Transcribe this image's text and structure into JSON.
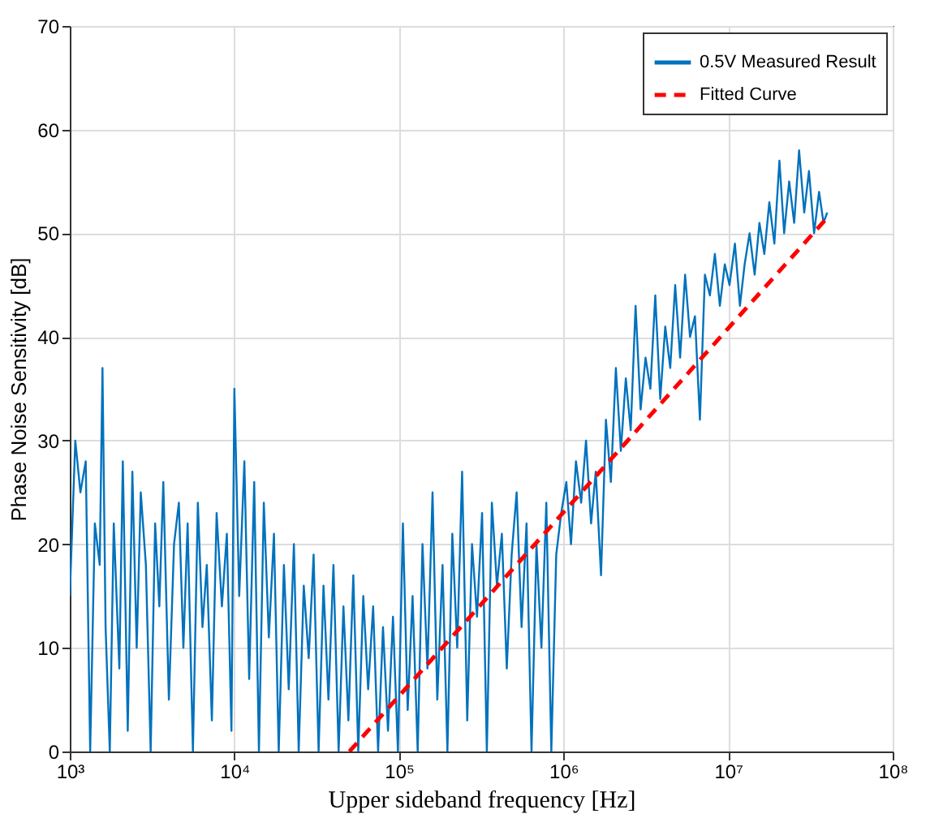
{
  "chart_data": {
    "type": "line",
    "xlabel": "Upper sideband frequency [Hz]",
    "ylabel": "Phase Noise Sensitivity [dB]",
    "log": "x",
    "grid": true,
    "legend": "top right",
    "marker": "none",
    "xlim": [
      1000,
      100000000
    ],
    "xticks": [
      {
        "value": 1000,
        "label": "10³"
      },
      {
        "value": 10000,
        "label": "10⁴"
      },
      {
        "value": 100000,
        "label": "10⁵"
      },
      {
        "value": 1000000,
        "label": "10⁶"
      },
      {
        "value": 10000000,
        "label": "10⁷"
      },
      {
        "value": 100000000,
        "label": "10⁸"
      }
    ],
    "ylim": [
      0,
      70
    ],
    "yticks": [
      0,
      10,
      20,
      30,
      40,
      50,
      60,
      70
    ],
    "series": [
      {
        "name": "0.5V Measured Result",
        "color": "#0072bd",
        "line_style": "solid",
        "x": [
          1000,
          1080,
          1160,
          1250,
          1330,
          1420,
          1520,
          1580,
          1650,
          1750,
          1850,
          2000,
          2100,
          2250,
          2400,
          2550,
          2700,
          2900,
          3100,
          3300,
          3500,
          3700,
          4000,
          4300,
          4600,
          4900,
          5200,
          5600,
          6000,
          6400,
          6800,
          7300,
          7800,
          8400,
          9000,
          9600,
          10000,
          10700,
          11500,
          12300,
          13200,
          14100,
          15100,
          16200,
          17400,
          18600,
          20000,
          21400,
          23000,
          24600,
          26400,
          28300,
          30300,
          32500,
          34800,
          37300,
          40000,
          43000,
          46000,
          49300,
          52800,
          56600,
          60700,
          65000,
          69700,
          74700,
          80000,
          85800,
          92000,
          98600,
          105700,
          113000,
          121000,
          130000,
          139000,
          149000,
          160000,
          171000,
          184000,
          197000,
          211000,
          226000,
          242000,
          260000,
          278000,
          298000,
          320000,
          342000,
          367000,
          394000,
          422000,
          452000,
          484000,
          519000,
          556000,
          596000,
          639000,
          685000,
          734000,
          786000,
          843000,
          903000,
          968000,
          1040000,
          1110000,
          1190000,
          1280000,
          1370000,
          1470000,
          1570000,
          1690000,
          1810000,
          1940000,
          2080000,
          2230000,
          2390000,
          2560000,
          2740000,
          2940000,
          3150000,
          3370000,
          3610000,
          3870000,
          4150000,
          4450000,
          4770000,
          5110000,
          5480000,
          5870000,
          6290000,
          6740000,
          7230000,
          7750000,
          8310000,
          8910000,
          9550000,
          10200000,
          11000000,
          11800000,
          12600000,
          13500000,
          14500000,
          15500000,
          16600000,
          17800000,
          19100000,
          20500000,
          21900000,
          23500000,
          25200000,
          27000000,
          29000000,
          31000000,
          33300000,
          35700000,
          38000000,
          40000000
        ],
        "values": [
          15,
          30,
          25,
          28,
          0,
          22,
          18,
          37,
          12,
          0,
          22,
          8,
          28,
          2,
          27,
          10,
          25,
          18,
          0,
          22,
          14,
          26,
          5,
          20,
          24,
          10,
          22,
          0,
          24,
          12,
          18,
          3,
          23,
          14,
          21,
          2,
          35,
          15,
          28,
          7,
          26,
          0,
          24,
          11,
          21,
          0,
          18,
          6,
          20,
          0,
          16,
          9,
          19,
          0,
          16,
          5,
          18,
          0,
          14,
          3,
          17,
          0,
          15,
          6,
          14,
          0,
          12,
          2,
          13,
          0,
          22,
          4,
          15,
          0,
          20,
          8,
          25,
          5,
          18,
          0,
          21,
          10,
          27,
          3,
          20,
          13,
          23,
          0,
          24,
          16,
          21,
          8,
          19,
          25,
          12,
          22,
          0,
          20,
          10,
          24,
          0,
          19,
          23,
          26,
          20,
          28,
          24,
          30,
          22,
          27,
          17,
          32,
          26,
          37,
          29,
          36,
          31,
          43,
          33,
          38,
          35,
          44,
          34,
          41,
          37,
          45,
          38,
          46,
          40,
          42,
          32,
          46,
          44,
          48,
          43,
          47,
          45,
          49,
          43,
          47,
          50,
          46,
          51,
          48,
          53,
          49,
          57,
          50,
          55,
          51,
          58,
          52,
          56,
          50,
          54,
          51,
          52
        ]
      },
      {
        "name": "Fitted Curve",
        "color": "#ff0000",
        "line_style": "dashed",
        "x": [
          50000,
          40000000
        ],
        "values": [
          0,
          51.5
        ]
      }
    ]
  }
}
